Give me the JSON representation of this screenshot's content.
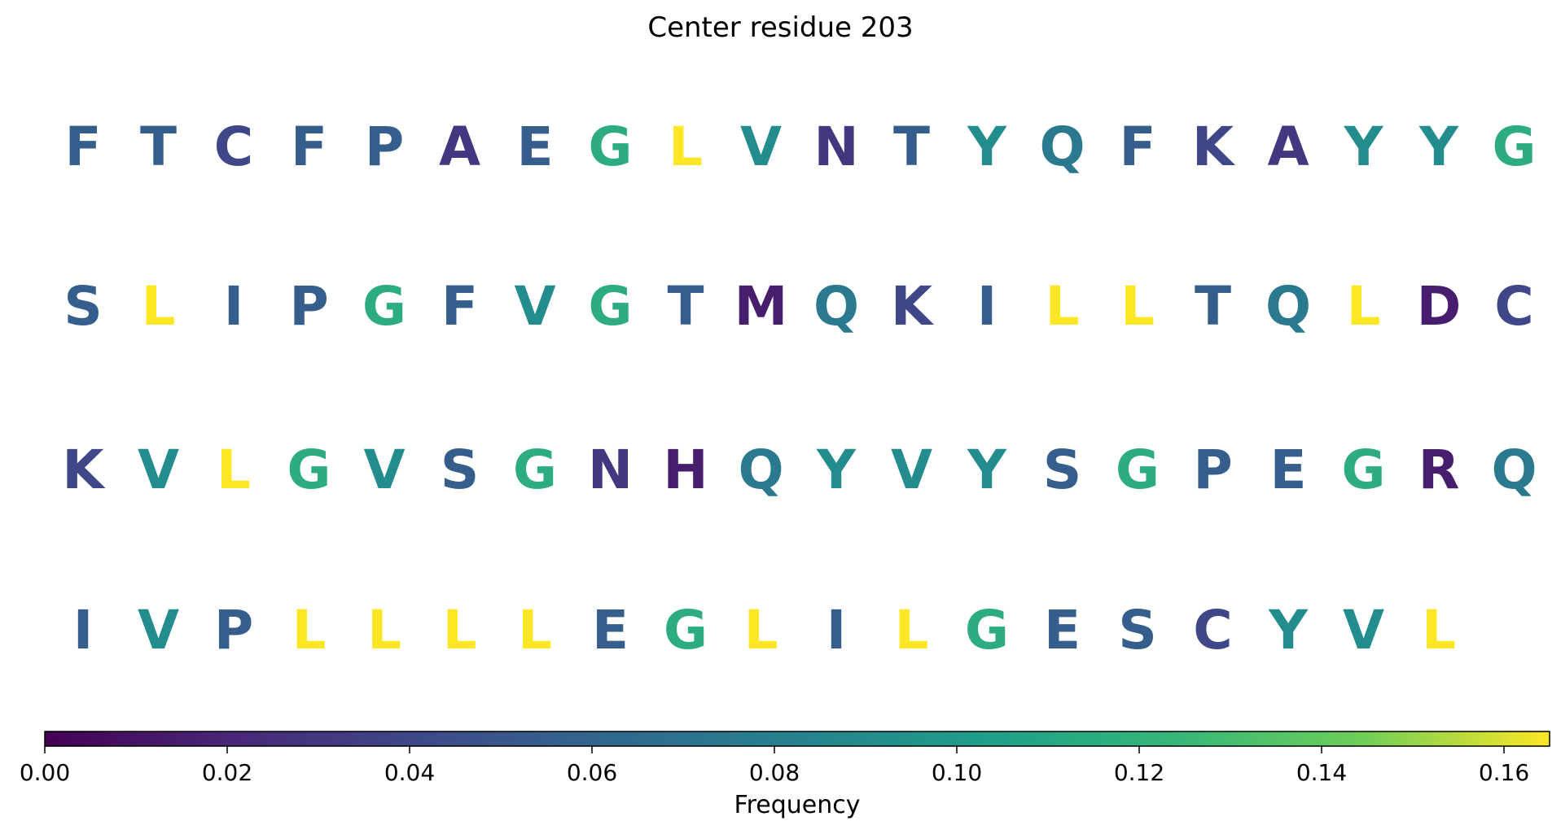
{
  "chart_data": {
    "type": "heatmap",
    "title": "Center residue 203",
    "rows": [
      [
        "F",
        "T",
        "C",
        "F",
        "P",
        "A",
        "E",
        "G",
        "L",
        "V",
        "N",
        "T",
        "Y",
        "Q",
        "F",
        "K",
        "A",
        "Y",
        "Y",
        "G"
      ],
      [
        "S",
        "L",
        "I",
        "P",
        "G",
        "F",
        "V",
        "G",
        "T",
        "M",
        "Q",
        "K",
        "I",
        "L",
        "L",
        "T",
        "Q",
        "L",
        "D",
        "C"
      ],
      [
        "K",
        "V",
        "L",
        "G",
        "V",
        "S",
        "G",
        "N",
        "H",
        "Q",
        "Y",
        "V",
        "Y",
        "S",
        "G",
        "P",
        "E",
        "G",
        "R",
        "Q"
      ],
      [
        "I",
        "V",
        "P",
        "L",
        "L",
        "L",
        "L",
        "E",
        "G",
        "L",
        "I",
        "L",
        "G",
        "E",
        "S",
        "C",
        "Y",
        "V",
        "L"
      ]
    ],
    "residue_frequency": {
      "L": 0.165,
      "G": 0.115,
      "V": 0.09,
      "Y": 0.09,
      "Q": 0.075,
      "I": 0.055,
      "E": 0.055,
      "P": 0.055,
      "F": 0.055,
      "T": 0.055,
      "S": 0.055,
      "C": 0.04,
      "K": 0.04,
      "N": 0.03,
      "A": 0.03,
      "D": 0.015,
      "R": 0.015,
      "M": 0.015,
      "H": 0.015
    },
    "colorbar": {
      "colormap": "viridis",
      "range": [
        0,
        0.165
      ],
      "ticks": [
        0.0,
        0.02,
        0.04,
        0.06,
        0.08,
        0.1,
        0.12,
        0.14,
        0.16
      ],
      "tick_labels": [
        "0.00",
        "0.02",
        "0.04",
        "0.06",
        "0.08",
        "0.10",
        "0.12",
        "0.14",
        "0.16"
      ],
      "label": "Frequency",
      "orientation": "horizontal",
      "placement": "bottom"
    },
    "grid": false,
    "legend": "none"
  }
}
